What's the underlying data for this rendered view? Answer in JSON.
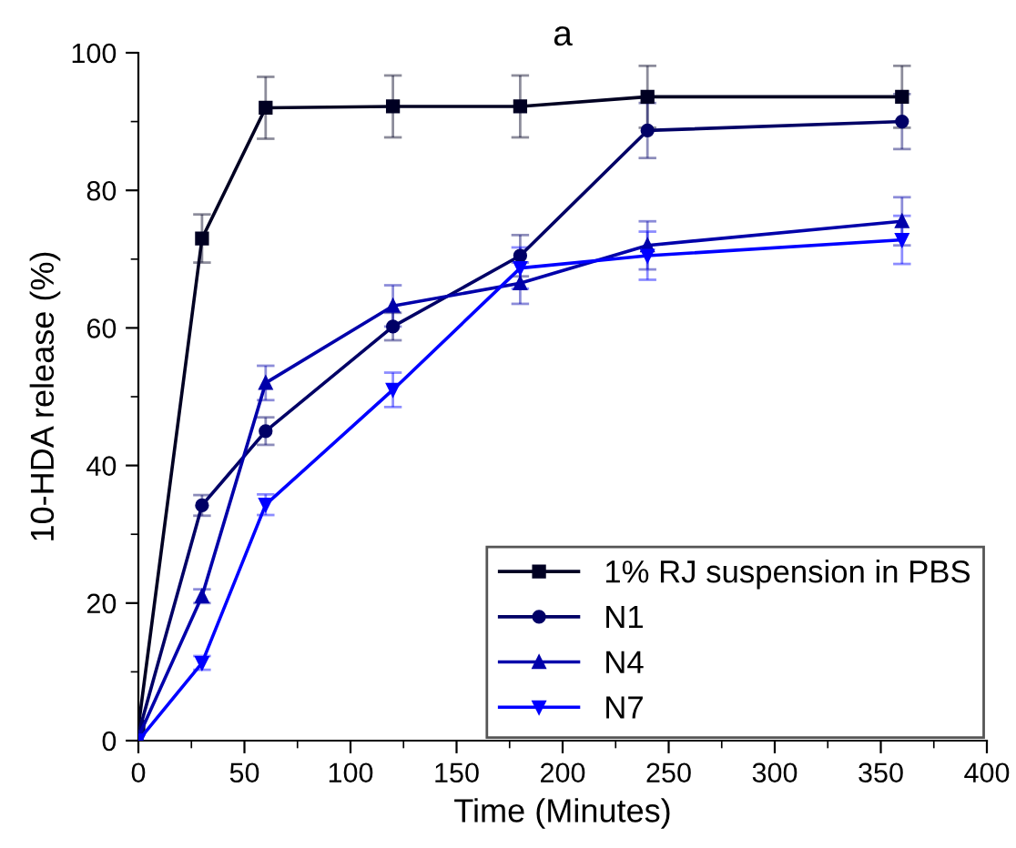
{
  "chart_data": {
    "type": "line",
    "title": "a",
    "xlabel": "Time (Minutes)",
    "ylabel": "10-HDA release (%)",
    "x": [
      0,
      30,
      60,
      120,
      180,
      240,
      360
    ],
    "series": [
      {
        "name": "1% RJ suspension in PBS",
        "color": "#000022",
        "marker": "square",
        "values": [
          2,
          73,
          92,
          92.2,
          92.2,
          93.6,
          93.6
        ],
        "errors": [
          null,
          3.5,
          4.5,
          4.5,
          4.5,
          4.5,
          4.5
        ]
      },
      {
        "name": "N1",
        "color": "#000066",
        "marker": "circle",
        "values": [
          1,
          34.2,
          45,
          60.2,
          70.5,
          88.7,
          90
        ],
        "errors": [
          null,
          1.5,
          2,
          2,
          3,
          4,
          4
        ]
      },
      {
        "name": "N4",
        "color": "#0000aa",
        "marker": "triangle",
        "values": [
          0.5,
          21,
          52,
          63.2,
          66.5,
          72,
          75.5
        ],
        "errors": [
          null,
          1,
          2.5,
          3,
          3,
          3.5,
          3.5
        ]
      },
      {
        "name": "N7",
        "color": "#0000ff",
        "marker": "triangle_down",
        "values": [
          0,
          11.3,
          34.3,
          51,
          68.7,
          70.5,
          72.8
        ],
        "errors": [
          null,
          1,
          1.5,
          2.5,
          3,
          3.5,
          3.5
        ]
      }
    ],
    "xlim": [
      0,
      400
    ],
    "ylim": [
      0,
      100
    ],
    "xticks": [
      0,
      50,
      100,
      150,
      200,
      250,
      300,
      350,
      400
    ],
    "yticks": [
      0,
      20,
      40,
      60,
      80,
      100
    ],
    "grid": false,
    "legend": "bottom right",
    "line_style": "solid"
  }
}
